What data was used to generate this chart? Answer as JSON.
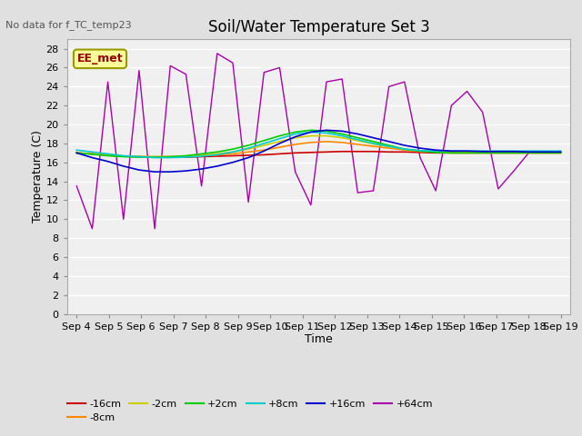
{
  "title": "Soil/Water Temperature Set 3",
  "no_data_label": "No data for f_TC_temp23",
  "legend_box_label": "EE_met",
  "xlabel": "Time",
  "ylabel": "Temperature (C)",
  "ylim": [
    0,
    29
  ],
  "yticks": [
    0,
    2,
    4,
    6,
    8,
    10,
    12,
    14,
    16,
    18,
    20,
    22,
    24,
    26,
    28
  ],
  "x_labels": [
    "Sep 4",
    "Sep 5",
    "Sep 6",
    "Sep 7",
    "Sep 8",
    "Sep 9",
    "Sep 10",
    "Sep 11",
    "Sep 12",
    "Sep 13",
    "Sep 14",
    "Sep 15",
    "Sep 16",
    "Sep 17",
    "Sep 18",
    "Sep 19"
  ],
  "series": {
    "-16cm": {
      "color": "#cc0000",
      "points": [
        17.0,
        16.9,
        16.75,
        16.65,
        16.6,
        16.55,
        16.55,
        16.55,
        16.6,
        16.65,
        16.7,
        16.75,
        16.8,
        16.9,
        17.0,
        17.05,
        17.1,
        17.15,
        17.15,
        17.15,
        17.1,
        17.1,
        17.05,
        17.0,
        17.0,
        17.0,
        17.0,
        17.0,
        17.0,
        17.0,
        17.0,
        17.0
      ]
    },
    "-8cm": {
      "color": "#ff8800",
      "points": [
        17.0,
        16.9,
        16.75,
        16.65,
        16.6,
        16.6,
        16.6,
        16.65,
        16.7,
        16.8,
        16.9,
        17.1,
        17.3,
        17.6,
        17.9,
        18.1,
        18.2,
        18.1,
        17.9,
        17.7,
        17.5,
        17.3,
        17.15,
        17.1,
        17.0,
        17.0,
        17.0,
        17.0,
        17.0,
        17.0,
        17.0,
        17.0
      ]
    },
    "-2cm": {
      "color": "#cccc00",
      "points": [
        17.0,
        16.9,
        16.75,
        16.65,
        16.6,
        16.6,
        16.6,
        16.65,
        16.75,
        16.9,
        17.1,
        17.4,
        17.8,
        18.2,
        18.6,
        18.8,
        18.8,
        18.6,
        18.3,
        17.95,
        17.65,
        17.4,
        17.2,
        17.1,
        17.0,
        17.0,
        17.0,
        17.0,
        17.0,
        17.0,
        17.0,
        17.0
      ]
    },
    "+2cm": {
      "color": "#00cc00",
      "points": [
        17.0,
        16.85,
        16.7,
        16.6,
        16.55,
        16.55,
        16.6,
        16.7,
        16.9,
        17.1,
        17.4,
        17.8,
        18.3,
        18.8,
        19.2,
        19.4,
        19.3,
        19.0,
        18.6,
        18.2,
        17.8,
        17.4,
        17.2,
        17.05,
        17.0,
        17.0,
        17.0,
        17.0,
        17.0,
        17.0,
        17.0,
        17.0
      ]
    },
    "+8cm": {
      "color": "#00cccc",
      "points": [
        17.3,
        17.1,
        16.9,
        16.7,
        16.6,
        16.5,
        16.5,
        16.55,
        16.65,
        16.8,
        17.1,
        17.5,
        18.0,
        18.5,
        19.0,
        19.2,
        19.1,
        18.8,
        18.4,
        18.0,
        17.7,
        17.4,
        17.25,
        17.2,
        17.2,
        17.2,
        17.2,
        17.2,
        17.2,
        17.2,
        17.2,
        17.2
      ]
    },
    "+16cm": {
      "color": "#0000cc",
      "points": [
        17.0,
        16.5,
        16.1,
        15.6,
        15.2,
        15.0,
        15.0,
        15.1,
        15.3,
        15.6,
        16.0,
        16.5,
        17.2,
        18.0,
        18.7,
        19.2,
        19.4,
        19.3,
        19.0,
        18.6,
        18.2,
        17.8,
        17.5,
        17.3,
        17.2,
        17.2,
        17.15,
        17.15,
        17.15,
        17.1,
        17.1,
        17.1
      ]
    },
    "+64cm": {
      "color": "#aa00aa",
      "points": [
        13.5,
        9.0,
        24.5,
        10.0,
        25.7,
        9.0,
        26.2,
        25.3,
        13.5,
        27.5,
        26.5,
        11.8,
        25.5,
        26.0,
        15.0,
        11.5,
        24.5,
        24.8,
        12.8,
        13.0,
        24.0,
        24.5,
        16.5,
        13.0,
        22.0,
        23.5,
        21.3,
        13.2,
        15.1,
        17.1,
        17.1,
        17.1
      ]
    }
  },
  "bg_color": "#e0e0e0",
  "plot_bg_color": "#f0f0f0",
  "grid_color": "#ffffff",
  "title_fontsize": 12,
  "axis_label_fontsize": 9,
  "tick_fontsize": 8,
  "legend_fontsize": 8
}
